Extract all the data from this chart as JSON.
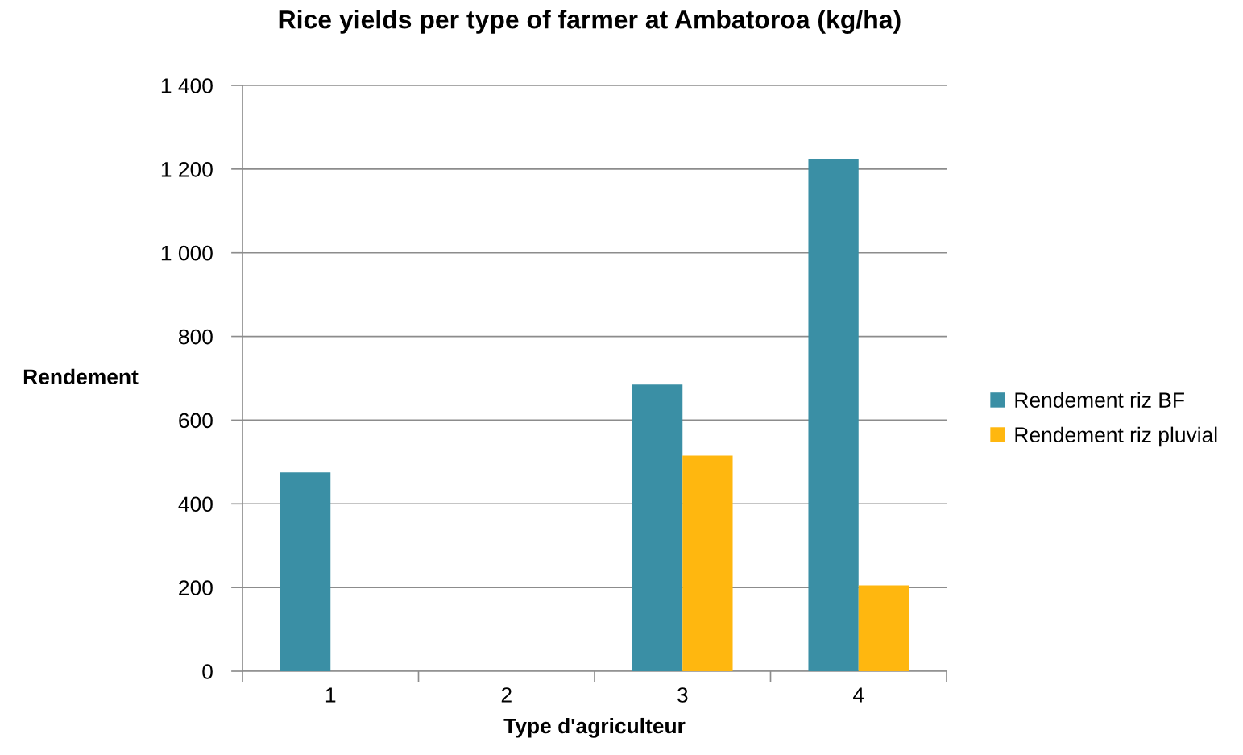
{
  "chart_data": {
    "type": "bar",
    "title": "Rice yields per type of farmer at Ambatoroa (kg/ha)",
    "xlabel": "Type d'agriculteur",
    "ylabel": "Rendement",
    "categories": [
      "1",
      "2",
      "3",
      "4"
    ],
    "series": [
      {
        "name": "Rendement riz BF",
        "color": "#3a8fa5",
        "values": [
          475,
          null,
          685,
          1225
        ]
      },
      {
        "name": "Rendement riz pluvial",
        "color": "#ffb70f",
        "values": [
          null,
          null,
          515,
          205
        ]
      }
    ],
    "ylim": [
      0,
      1400
    ],
    "yticks": [
      0,
      200,
      400,
      600,
      800,
      {
        "value": 1000,
        "label": "1 000"
      },
      {
        "value": 1200,
        "label": "1 200"
      },
      {
        "value": 1400,
        "label": "1 400"
      }
    ],
    "grid": "y",
    "legend": "right"
  }
}
